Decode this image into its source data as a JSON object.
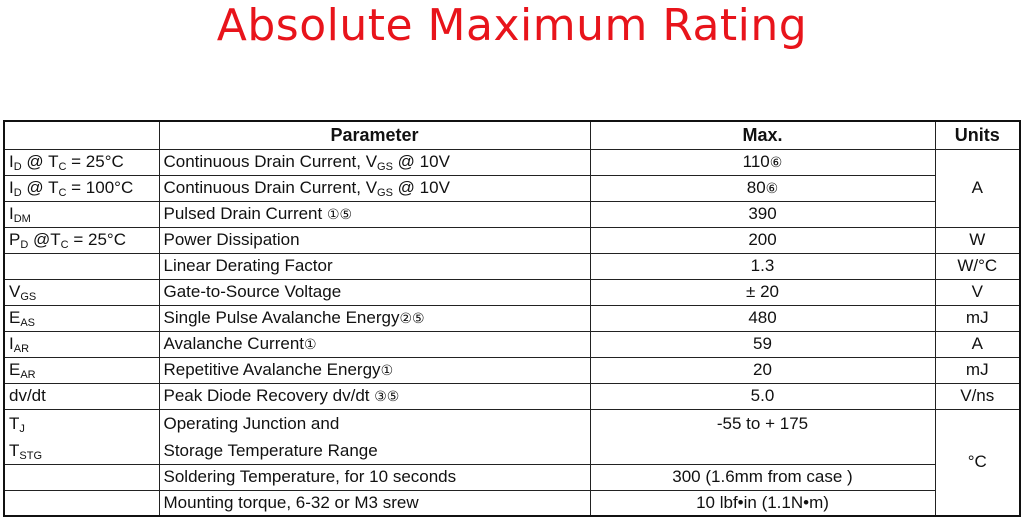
{
  "title": "Absolute Maximum Rating",
  "headers": {
    "parameter": "Parameter",
    "max": "Max.",
    "units": "Units"
  },
  "rows": [
    {
      "sym": "I",
      "sub": "D",
      "cond_pre": " @ T",
      "cond_sub": "C",
      "cond_post": " = 25°C",
      "param_pre": "Continuous Drain Current, V",
      "param_sub": "GS",
      "param_post": " @ 10V",
      "max": "110",
      "max_note": "⑥",
      "unit": "A"
    },
    {
      "sym": "I",
      "sub": "D",
      "cond_pre": " @ T",
      "cond_sub": "C",
      "cond_post": " = 100°C",
      "param_pre": "Continuous Drain Current, V",
      "param_sub": "GS",
      "param_post": " @ 10V",
      "max": "80",
      "max_note": "⑥"
    },
    {
      "sym": "I",
      "sub": "DM",
      "param_pre": "Pulsed Drain Current ",
      "param_note": "①⑤",
      "max": "390"
    },
    {
      "sym": "P",
      "sub": "D",
      "cond_pre": " @T",
      "cond_sub": "C",
      "cond_post": " = 25°C",
      "param_pre": "Power Dissipation",
      "max": "200",
      "unit": "W"
    },
    {
      "param_pre": "Linear Derating Factor",
      "max": "1.3",
      "unit": "W/°C"
    },
    {
      "sym": "V",
      "sub": "GS",
      "param_pre": "Gate-to-Source  Voltage",
      "max": "± 20",
      "unit": "V"
    },
    {
      "sym": "E",
      "sub": "AS",
      "param_pre": "Single Pulse Avalanche Energy",
      "param_note": "②⑤",
      "max": "480",
      "unit": "mJ"
    },
    {
      "sym": "I",
      "sub": "AR",
      "param_pre": "Avalanche  Current",
      "param_note": "①",
      "max": "59",
      "unit": "A"
    },
    {
      "sym": "E",
      "sub": "AR",
      "param_pre": "Repetitive Avalanche Energy",
      "param_note": "①",
      "max": "20",
      "unit": "mJ"
    },
    {
      "sym": "dv/dt",
      "param_pre": "Peak Diode Recovery dv/dt ",
      "param_note": "③⑤",
      "max": "5.0",
      "unit": "V/ns"
    }
  ],
  "temp": {
    "sym1": "T",
    "sub1": "J",
    "sym2": "T",
    "sub2": "STG",
    "param1": "Operating Junction and",
    "param2": "Storage Temperature Range",
    "max": "-55  to + 175",
    "unit": "°C"
  },
  "soldering": {
    "param": "Soldering Temperature, for 10 seconds",
    "max": "300 (1.6mm from case )"
  },
  "mounting": {
    "param": "Mounting torque, 6-32 or M3 srew",
    "max": "10 lbf•in (1.1N•m)"
  }
}
